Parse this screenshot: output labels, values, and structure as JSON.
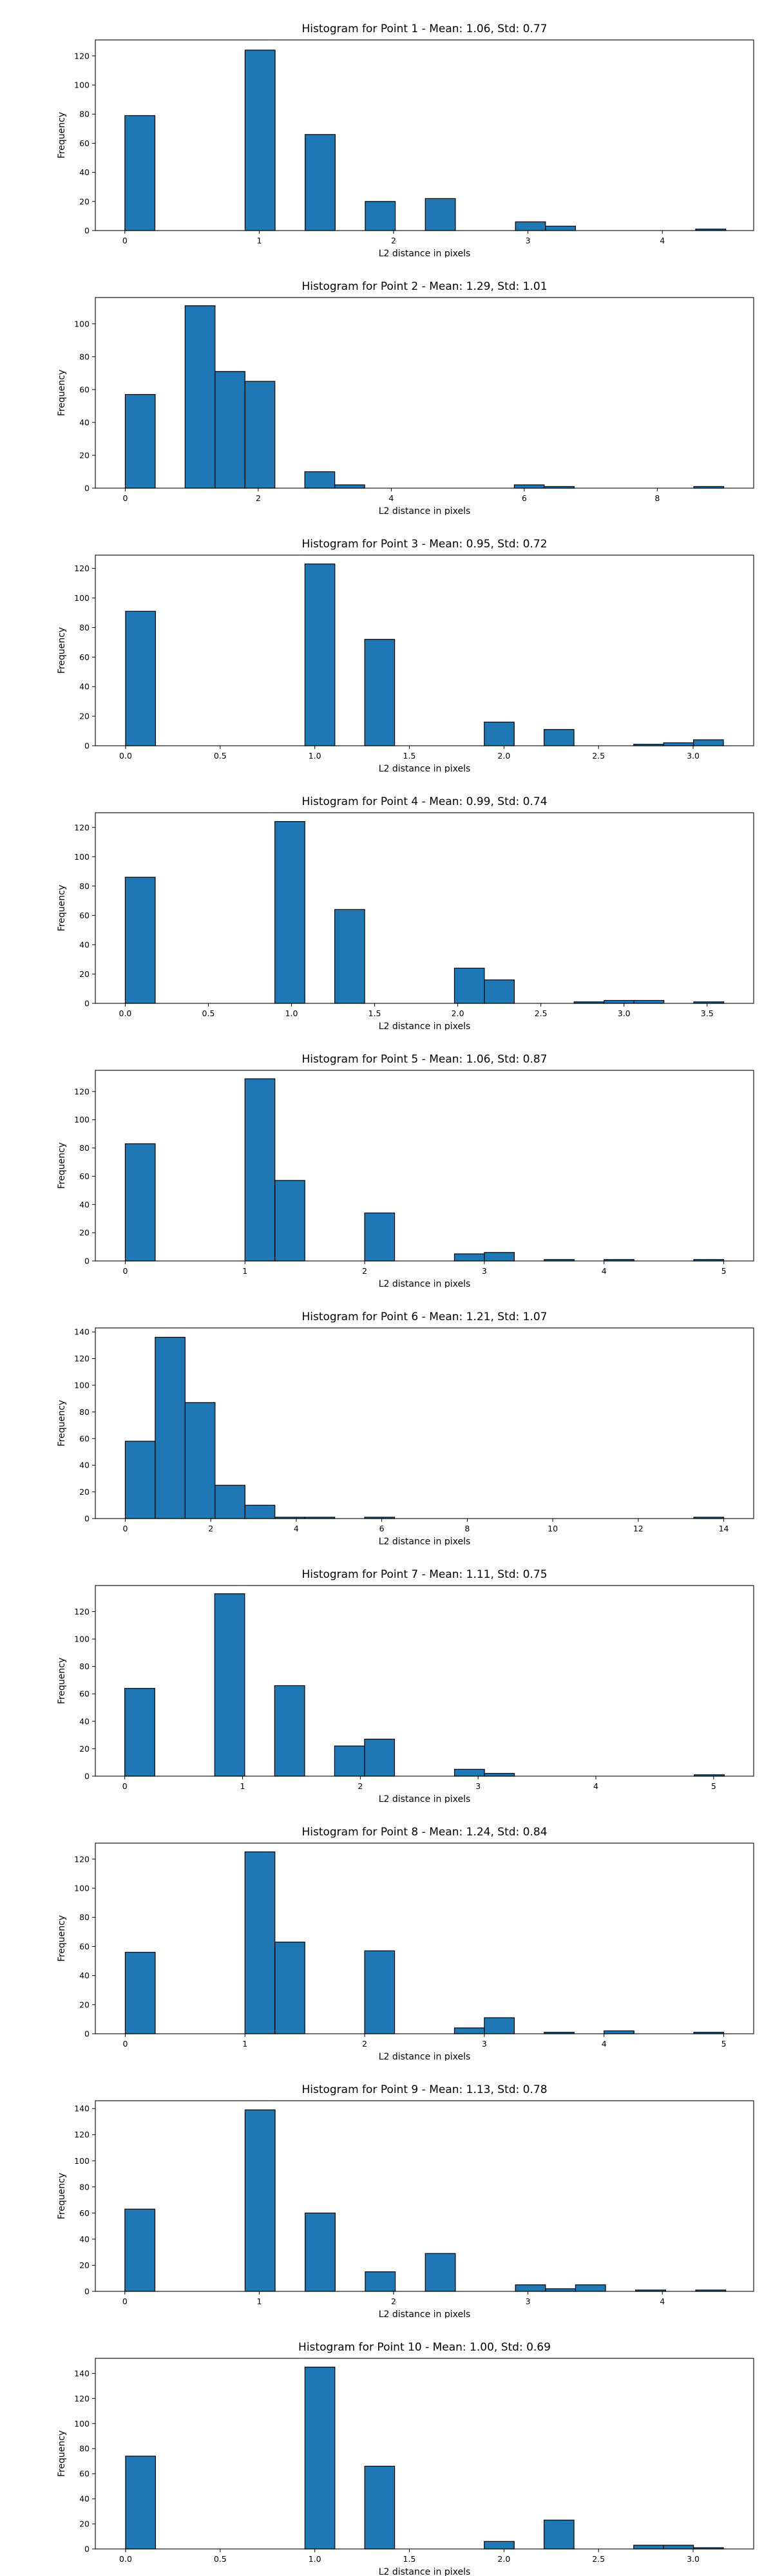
{
  "chart_data": [
    {
      "type": "bar",
      "title": "Histogram for Point 1 - Mean: 1.06, Std: 0.77",
      "xlabel": "L2 distance in pixels",
      "ylabel": "Frequency",
      "xlim": [
        -0.22,
        4.68
      ],
      "ylim": [
        0,
        131
      ],
      "xticks": [
        0,
        1,
        2,
        3,
        4
      ],
      "xtick_labels": [
        "0",
        "1",
        "2",
        "3",
        "4"
      ],
      "yticks": [
        0,
        20,
        40,
        60,
        80,
        100,
        120
      ],
      "ytick_labels": [
        "0",
        "20",
        "40",
        "60",
        "80",
        "100",
        "120"
      ],
      "bin_edges": [
        0,
        0.2236,
        0.4472,
        0.6708,
        0.8944,
        1.118,
        1.3416,
        1.5652,
        1.7888,
        2.0124,
        2.236,
        2.4596,
        2.6832,
        2.9068,
        3.1304,
        3.354,
        3.5776,
        3.8012,
        4.0248,
        4.2484,
        4.472
      ],
      "values": [
        79,
        0,
        0,
        0,
        124,
        0,
        66,
        0,
        20,
        0,
        22,
        0,
        0,
        6,
        3,
        0,
        0,
        0,
        0,
        1
      ]
    },
    {
      "type": "bar",
      "title": "Histogram for Point 2 - Mean: 1.29, Std: 1.01",
      "xlabel": "L2 distance in pixels",
      "ylabel": "Frequency",
      "xlim": [
        -0.45,
        9.45
      ],
      "ylim": [
        0,
        116
      ],
      "xticks": [
        0,
        2,
        4,
        6,
        8
      ],
      "xtick_labels": [
        "0",
        "2",
        "4",
        "6",
        "8"
      ],
      "yticks": [
        0,
        20,
        40,
        60,
        80,
        100
      ],
      "ytick_labels": [
        "0",
        "20",
        "40",
        "60",
        "80",
        "100"
      ],
      "bin_edges": [
        0,
        0.45,
        0.9,
        1.35,
        1.8,
        2.25,
        2.7,
        3.15,
        3.6,
        4.05,
        4.5,
        4.95,
        5.4,
        5.85,
        6.3,
        6.75,
        7.2,
        7.65,
        8.1,
        8.55,
        9.0
      ],
      "values": [
        57,
        0,
        111,
        71,
        65,
        0,
        10,
        2,
        0,
        0,
        0,
        0,
        0,
        2,
        1,
        0,
        0,
        0,
        0,
        1
      ]
    },
    {
      "type": "bar",
      "title": "Histogram for Point 3 - Mean: 0.95, Std: 0.72",
      "xlabel": "L2 distance in pixels",
      "ylabel": "Frequency",
      "xlim": [
        -0.16,
        3.32
      ],
      "ylim": [
        0,
        129
      ],
      "xticks": [
        0,
        0.5,
        1,
        1.5,
        2,
        2.5,
        3
      ],
      "xtick_labels": [
        "0.0",
        "0.5",
        "1.0",
        "1.5",
        "2.0",
        "2.5",
        "3.0"
      ],
      "yticks": [
        0,
        20,
        40,
        60,
        80,
        100,
        120
      ],
      "ytick_labels": [
        "0",
        "20",
        "40",
        "60",
        "80",
        "100",
        "120"
      ],
      "bin_edges": [
        0,
        0.158,
        0.316,
        0.474,
        0.632,
        0.79,
        0.948,
        1.106,
        1.264,
        1.422,
        1.58,
        1.738,
        1.896,
        2.054,
        2.212,
        2.37,
        2.528,
        2.686,
        2.844,
        3.002,
        3.16
      ],
      "values": [
        91,
        0,
        0,
        0,
        0,
        0,
        123,
        0,
        72,
        0,
        0,
        0,
        16,
        0,
        11,
        0,
        0,
        1,
        2,
        4
      ]
    },
    {
      "type": "bar",
      "title": "Histogram for Point 4 - Mean: 0.99, Std: 0.74",
      "xlabel": "L2 distance in pixels",
      "ylabel": "Frequency",
      "xlim": [
        -0.18,
        3.78
      ],
      "ylim": [
        0,
        130
      ],
      "xticks": [
        0,
        0.5,
        1,
        1.5,
        2,
        2.5,
        3,
        3.5
      ],
      "xtick_labels": [
        "0.0",
        "0.5",
        "1.0",
        "1.5",
        "2.0",
        "2.5",
        "3.0",
        "3.5"
      ],
      "yticks": [
        0,
        20,
        40,
        60,
        80,
        100,
        120
      ],
      "ytick_labels": [
        "0",
        "20",
        "40",
        "60",
        "80",
        "100",
        "120"
      ],
      "bin_edges": [
        0,
        0.18,
        0.36,
        0.54,
        0.72,
        0.9,
        1.08,
        1.26,
        1.44,
        1.62,
        1.8,
        1.98,
        2.16,
        2.34,
        2.52,
        2.7,
        2.88,
        3.06,
        3.24,
        3.42,
        3.6
      ],
      "values": [
        86,
        0,
        0,
        0,
        0,
        124,
        0,
        64,
        0,
        0,
        0,
        24,
        16,
        0,
        0,
        1,
        2,
        2,
        0,
        1
      ]
    },
    {
      "type": "bar",
      "title": "Histogram for Point 5 - Mean: 1.06, Std: 0.87",
      "xlabel": "L2 distance in pixels",
      "ylabel": "Frequency",
      "xlim": [
        -0.25,
        5.25
      ],
      "ylim": [
        0,
        135
      ],
      "xticks": [
        0,
        1,
        2,
        3,
        4,
        5
      ],
      "xtick_labels": [
        "0",
        "1",
        "2",
        "3",
        "4",
        "5"
      ],
      "yticks": [
        0,
        20,
        40,
        60,
        80,
        100,
        120
      ],
      "ytick_labels": [
        "0",
        "20",
        "40",
        "60",
        "80",
        "100",
        "120"
      ],
      "bin_edges": [
        0,
        0.25,
        0.5,
        0.75,
        1.0,
        1.25,
        1.5,
        1.75,
        2.0,
        2.25,
        2.5,
        2.75,
        3.0,
        3.25,
        3.5,
        3.75,
        4.0,
        4.25,
        4.5,
        4.75,
        5.0
      ],
      "values": [
        83,
        0,
        0,
        0,
        129,
        57,
        0,
        0,
        34,
        0,
        0,
        5,
        6,
        0,
        1,
        0,
        1,
        0,
        0,
        1
      ]
    },
    {
      "type": "bar",
      "title": "Histogram for Point 6 - Mean: 1.21, Std: 1.07",
      "xlabel": "L2 distance in pixels",
      "ylabel": "Frequency",
      "xlim": [
        -0.7,
        14.7
      ],
      "ylim": [
        0,
        143
      ],
      "xticks": [
        0,
        2,
        4,
        6,
        8,
        10,
        12,
        14
      ],
      "xtick_labels": [
        "0",
        "2",
        "4",
        "6",
        "8",
        "10",
        "12",
        "14"
      ],
      "yticks": [
        0,
        20,
        40,
        60,
        80,
        100,
        120,
        140
      ],
      "ytick_labels": [
        "0",
        "20",
        "40",
        "60",
        "80",
        "100",
        "120",
        "140"
      ],
      "bin_edges": [
        0,
        0.7,
        1.4,
        2.1,
        2.8,
        3.5,
        4.2,
        4.9,
        5.6,
        6.3,
        7.0,
        7.7,
        8.4,
        9.1,
        9.8,
        10.5,
        11.2,
        11.9,
        12.6,
        13.3,
        14.0
      ],
      "values": [
        58,
        136,
        87,
        25,
        10,
        1,
        1,
        0,
        1,
        0,
        0,
        0,
        0,
        0,
        0,
        0,
        0,
        0,
        0,
        1
      ]
    },
    {
      "type": "bar",
      "title": "Histogram for Point 7 - Mean: 1.11, Std: 0.75",
      "xlabel": "L2 distance in pixels",
      "ylabel": "Frequency",
      "xlim": [
        -0.25,
        5.34
      ],
      "ylim": [
        0,
        139
      ],
      "xticks": [
        0,
        1,
        2,
        3,
        4,
        5
      ],
      "xtick_labels": [
        "0",
        "1",
        "2",
        "3",
        "4",
        "5"
      ],
      "yticks": [
        0,
        20,
        40,
        60,
        80,
        100,
        120
      ],
      "ytick_labels": [
        "0",
        "20",
        "40",
        "60",
        "80",
        "100",
        "120"
      ],
      "bin_edges": [
        0,
        0.2545,
        0.509,
        0.7635,
        1.018,
        1.2725,
        1.527,
        1.7815,
        2.036,
        2.2905,
        2.545,
        2.7995,
        3.054,
        3.3085,
        3.563,
        3.8175,
        4.072,
        4.3265,
        4.581,
        4.8355,
        5.09
      ],
      "values": [
        64,
        0,
        0,
        133,
        0,
        66,
        0,
        22,
        27,
        0,
        0,
        5,
        2,
        0,
        0,
        0,
        0,
        0,
        0,
        1
      ]
    },
    {
      "type": "bar",
      "title": "Histogram for Point 8 - Mean: 1.24, Std: 0.84",
      "xlabel": "L2 distance in pixels",
      "ylabel": "Frequency",
      "xlim": [
        -0.25,
        5.25
      ],
      "ylim": [
        0,
        131
      ],
      "xticks": [
        0,
        1,
        2,
        3,
        4,
        5
      ],
      "xtick_labels": [
        "0",
        "1",
        "2",
        "3",
        "4",
        "5"
      ],
      "yticks": [
        0,
        20,
        40,
        60,
        80,
        100,
        120
      ],
      "ytick_labels": [
        "0",
        "20",
        "40",
        "60",
        "80",
        "100",
        "120"
      ],
      "bin_edges": [
        0,
        0.25,
        0.5,
        0.75,
        1.0,
        1.25,
        1.5,
        1.75,
        2.0,
        2.25,
        2.5,
        2.75,
        3.0,
        3.25,
        3.5,
        3.75,
        4.0,
        4.25,
        4.5,
        4.75,
        5.0
      ],
      "values": [
        56,
        0,
        0,
        0,
        125,
        63,
        0,
        0,
        57,
        0,
        0,
        4,
        11,
        0,
        1,
        0,
        2,
        0,
        0,
        1
      ]
    },
    {
      "type": "bar",
      "title": "Histogram for Point 9 - Mean: 1.13, Std: 0.78",
      "xlabel": "L2 distance in pixels",
      "ylabel": "Frequency",
      "xlim": [
        -0.22,
        4.68
      ],
      "ylim": [
        0,
        146
      ],
      "xticks": [
        0,
        1,
        2,
        3,
        4
      ],
      "xtick_labels": [
        "0",
        "1",
        "2",
        "3",
        "4"
      ],
      "yticks": [
        0,
        20,
        40,
        60,
        80,
        100,
        120,
        140
      ],
      "ytick_labels": [
        "0",
        "20",
        "40",
        "60",
        "80",
        "100",
        "120",
        "140"
      ],
      "bin_edges": [
        0,
        0.2236,
        0.4472,
        0.6708,
        0.8944,
        1.118,
        1.3416,
        1.5652,
        1.7888,
        2.0124,
        2.236,
        2.4596,
        2.6832,
        2.9068,
        3.1304,
        3.354,
        3.5776,
        3.8012,
        4.0248,
        4.2484,
        4.472
      ],
      "values": [
        63,
        0,
        0,
        0,
        139,
        0,
        60,
        0,
        15,
        0,
        29,
        0,
        0,
        5,
        2,
        5,
        0,
        1,
        0,
        1
      ]
    },
    {
      "type": "bar",
      "title": "Histogram for Point 10 - Mean: 1.00, Std: 0.69",
      "xlabel": "L2 distance in pixels",
      "ylabel": "Frequency",
      "xlim": [
        -0.16,
        3.32
      ],
      "ylim": [
        0,
        152
      ],
      "xticks": [
        0,
        0.5,
        1,
        1.5,
        2,
        2.5,
        3
      ],
      "xtick_labels": [
        "0.0",
        "0.5",
        "1.0",
        "1.5",
        "2.0",
        "2.5",
        "3.0"
      ],
      "yticks": [
        0,
        20,
        40,
        60,
        80,
        100,
        120,
        140
      ],
      "ytick_labels": [
        "0",
        "20",
        "40",
        "60",
        "80",
        "100",
        "120",
        "140"
      ],
      "bin_edges": [
        0,
        0.158,
        0.316,
        0.474,
        0.632,
        0.79,
        0.948,
        1.106,
        1.264,
        1.422,
        1.58,
        1.738,
        1.896,
        2.054,
        2.212,
        2.37,
        2.528,
        2.686,
        2.844,
        3.002,
        3.16
      ],
      "values": [
        74,
        0,
        0,
        0,
        0,
        0,
        145,
        0,
        66,
        0,
        0,
        0,
        6,
        0,
        23,
        0,
        0,
        3,
        3,
        1
      ]
    }
  ]
}
